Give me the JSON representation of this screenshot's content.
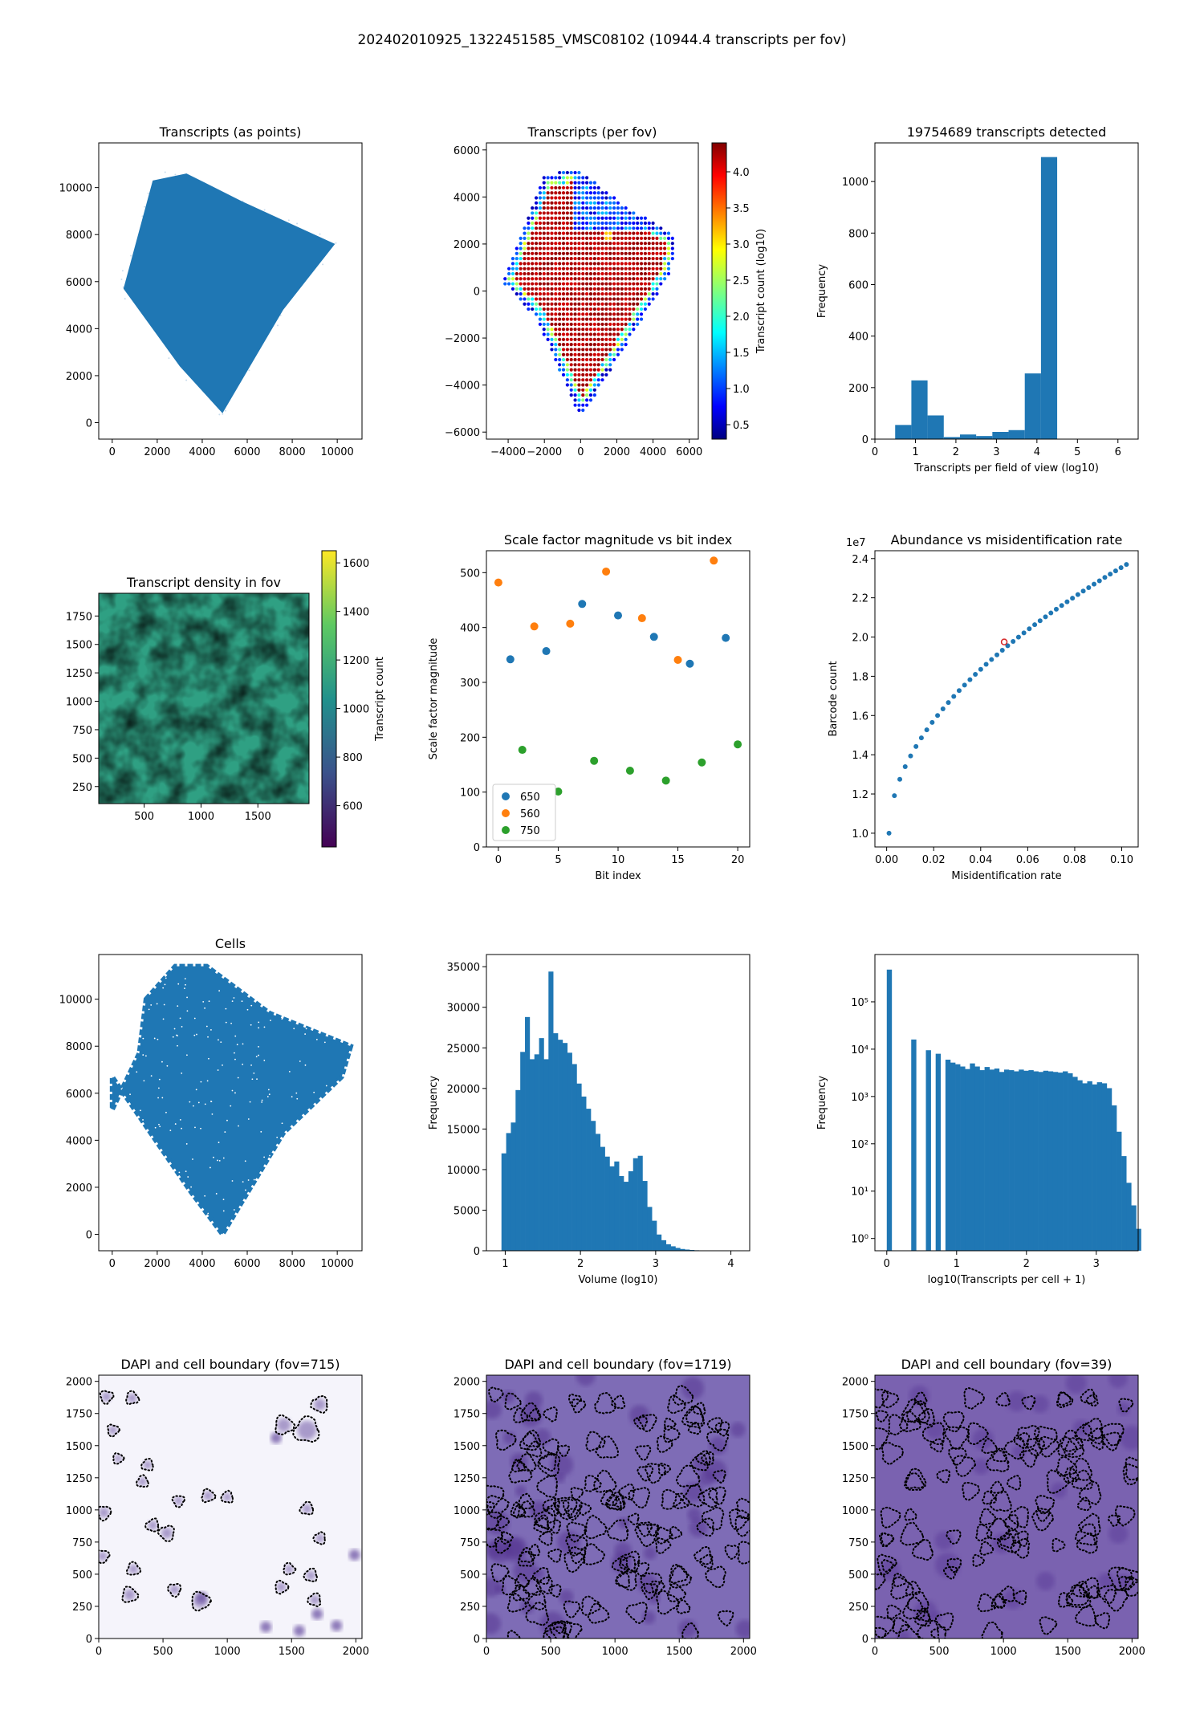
{
  "figure": {
    "suptitle": "202402010925_1322451585_VMSC08102 (10944.4 transcripts per fov)"
  },
  "colors": {
    "blue": "#1f77b4",
    "orange": "#ff7f0e",
    "green": "#2ca02c",
    "red": "#d62728"
  },
  "chart_data": [
    {
      "id": "points",
      "type": "scatter",
      "title": "Transcripts (as points)",
      "xlabel": "",
      "ylabel": "",
      "xlim": [
        -600,
        11100
      ],
      "ylim": [
        -700,
        11900
      ],
      "xticks": [
        0,
        2000,
        4000,
        6000,
        8000,
        10000
      ],
      "yticks": [
        0,
        2000,
        4000,
        6000,
        8000,
        10000
      ],
      "polygon": [
        [
          1800,
          10300
        ],
        [
          3300,
          10600
        ],
        [
          5800,
          9400
        ],
        [
          9900,
          7600
        ],
        [
          7600,
          4800
        ],
        [
          4900,
          400
        ],
        [
          3000,
          2400
        ],
        [
          500,
          5700
        ]
      ],
      "point_color": "#1f77b4"
    },
    {
      "id": "fovgrid",
      "type": "scatter",
      "title": "Transcripts (per fov)",
      "xlabel": "",
      "ylabel": "",
      "xlim": [
        -5200,
        6500
      ],
      "ylim": [
        -6300,
        6300
      ],
      "xticks": [
        -4000,
        -2000,
        0,
        2000,
        4000,
        6000
      ],
      "xtick_labels": [
        "−4000",
        "−2000",
        "0",
        "2000",
        "4000",
        "6000"
      ],
      "yticks": [
        -6000,
        -4000,
        -2000,
        0,
        2000,
        4000,
        6000
      ],
      "ytick_labels": [
        "−6000",
        "−4000",
        "−2000",
        "0",
        "2000",
        "4000",
        "6000"
      ],
      "colorbar": {
        "label": "Transcript count (log10)",
        "range": [
          0.3,
          4.4
        ],
        "ticks": [
          0.5,
          1.0,
          1.5,
          2.0,
          2.5,
          3.0,
          3.5,
          4.0
        ]
      },
      "region": [
        [
          -2000,
          4900
        ],
        [
          -200,
          5200
        ],
        [
          2300,
          3700
        ],
        [
          5300,
          2300
        ],
        [
          5000,
          800
        ],
        [
          0,
          -5400
        ],
        [
          -2400,
          -1200
        ],
        [
          -4300,
          400
        ]
      ]
    },
    {
      "id": "fovhist",
      "type": "bar",
      "title": "19754689 transcripts detected",
      "xlabel": "Transcripts per field of view (log10)",
      "ylabel": "Frequency",
      "xlim": [
        0,
        6.5
      ],
      "ylim": [
        0,
        1150
      ],
      "xticks": [
        0,
        1,
        2,
        3,
        4,
        5,
        6
      ],
      "yticks": [
        0,
        200,
        400,
        600,
        800,
        1000
      ],
      "bin_edges": [
        0.5,
        0.9,
        1.3,
        1.7,
        2.1,
        2.5,
        2.9,
        3.3,
        3.7,
        4.1,
        4.5
      ],
      "values": [
        55,
        228,
        92,
        8,
        18,
        12,
        28,
        35,
        255,
        1095
      ]
    },
    {
      "id": "density",
      "type": "heatmap",
      "title": "Transcript density in fov",
      "xlabel": "",
      "ylabel": "",
      "xlim": [
        100,
        1950
      ],
      "ylim": [
        100,
        1950
      ],
      "xticks": [
        500,
        1000,
        1500
      ],
      "yticks": [
        250,
        500,
        750,
        1000,
        1250,
        1500,
        1750
      ],
      "colorbar": {
        "label": "Transcript count",
        "range": [
          430,
          1650
        ],
        "ticks": [
          600,
          800,
          1000,
          1200,
          1400,
          1600
        ]
      }
    },
    {
      "id": "scale",
      "type": "scatter",
      "title": "Scale factor magnitude vs bit index",
      "xlabel": "Bit index",
      "ylabel": "Scale factor magnitude",
      "xlim": [
        -1,
        21
      ],
      "ylim": [
        0,
        540
      ],
      "xticks": [
        0,
        5,
        10,
        15,
        20
      ],
      "yticks": [
        0,
        100,
        200,
        300,
        400,
        500
      ],
      "legend_position": "lower left",
      "series": [
        {
          "name": "650",
          "color": "#1f77b4",
          "x": [
            1,
            4,
            7,
            10,
            13,
            16,
            19
          ],
          "y": [
            342,
            357,
            443,
            422,
            383,
            334,
            381
          ]
        },
        {
          "name": "560",
          "color": "#ff7f0e",
          "x": [
            0,
            3,
            6,
            9,
            12,
            15,
            18
          ],
          "y": [
            482,
            402,
            407,
            502,
            417,
            341,
            522
          ]
        },
        {
          "name": "750",
          "color": "#2ca02c",
          "x": [
            2,
            5,
            8,
            11,
            14,
            17,
            20
          ],
          "y": [
            177,
            101,
            157,
            139,
            121,
            154,
            187
          ]
        }
      ]
    },
    {
      "id": "abund",
      "type": "scatter",
      "title": "Abundance vs misidentification rate",
      "xlabel": "Misidentification rate",
      "ylabel": "Barcode count",
      "offset_label": "1e7",
      "xlim": [
        -0.005,
        0.107
      ],
      "ylim": [
        0.93,
        2.44
      ],
      "xticks": [
        0,
        0.02,
        0.04,
        0.06,
        0.08,
        0.1
      ],
      "xtick_labels": [
        "0.00",
        "0.02",
        "0.04",
        "0.06",
        "0.08",
        "0.10"
      ],
      "yticks": [
        1.0,
        1.2,
        1.4,
        1.6,
        1.8,
        2.0,
        2.2,
        2.4
      ],
      "ytick_labels": [
        "1.0",
        "1.2",
        "1.4",
        "1.6",
        "1.8",
        "2.0",
        "2.2",
        "2.4"
      ],
      "curve": {
        "x_start": 0.001,
        "x_end": 0.102,
        "points": 45,
        "y_at_start": 1.0,
        "y_at_end": 2.37
      },
      "highlight": {
        "x": 0.05,
        "y": 1.975,
        "color": "#d62728"
      }
    },
    {
      "id": "cells",
      "type": "scatter",
      "title": "Cells",
      "xlabel": "",
      "ylabel": "",
      "xlim": [
        -600,
        11100
      ],
      "ylim": [
        -700,
        11900
      ],
      "xticks": [
        0,
        2000,
        4000,
        6000,
        8000,
        10000
      ],
      "yticks": [
        0,
        2000,
        4000,
        6000,
        8000,
        10000
      ],
      "polygon": [
        [
          1500,
          10000
        ],
        [
          2800,
          11400
        ],
        [
          4200,
          11400
        ],
        [
          7000,
          9400
        ],
        [
          10600,
          8000
        ],
        [
          10200,
          6700
        ],
        [
          7600,
          4300
        ],
        [
          4900,
          0
        ],
        [
          3500,
          1800
        ],
        [
          0,
          6700
        ],
        [
          0,
          5300
        ],
        [
          1200,
          7700
        ]
      ]
    },
    {
      "id": "volume",
      "type": "bar",
      "title": "",
      "xlabel": "Volume (log10)",
      "ylabel": "Frequency",
      "xlim": [
        0.75,
        4.25
      ],
      "ylim": [
        0,
        36500
      ],
      "xticks": [
        1,
        2,
        3,
        4
      ],
      "yticks": [
        0,
        5000,
        10000,
        15000,
        20000,
        25000,
        30000,
        35000
      ],
      "bin_start": 0.95,
      "bin_width": 0.0625,
      "values": [
        12000,
        14500,
        15800,
        19800,
        24500,
        28800,
        23600,
        24200,
        26200,
        23600,
        34400,
        26800,
        26000,
        25600,
        24400,
        23000,
        20600,
        19000,
        17500,
        16000,
        14400,
        12800,
        11600,
        10400,
        11000,
        9200,
        8500,
        9800,
        11400,
        11700,
        8600,
        5400,
        3700,
        2000,
        1300,
        800,
        550,
        350,
        220,
        150,
        100,
        60,
        40,
        20
      ]
    },
    {
      "id": "percell",
      "type": "bar",
      "title": "",
      "xlabel": "log10(Transcripts per cell + 1)",
      "ylabel": "Frequency",
      "yscale": "log",
      "xlim": [
        -0.17,
        3.6
      ],
      "ylim": [
        0.55,
        1000000
      ],
      "xticks": [
        0,
        1,
        2,
        3
      ],
      "yticks": [
        1,
        10,
        100,
        1000,
        10000,
        100000
      ],
      "ytick_labels": [
        "10⁰",
        "10¹",
        "10²",
        "10³",
        "10⁴",
        "10⁵"
      ],
      "bin_width": 0.07,
      "values": [
        480000,
        0,
        0,
        0,
        0,
        16000,
        0,
        0,
        9500,
        0,
        8000,
        0,
        6000,
        5200,
        4800,
        4300,
        3800,
        5000,
        4300,
        3600,
        4200,
        3700,
        3900,
        3300,
        3700,
        3600,
        3400,
        3700,
        3500,
        3600,
        3400,
        3300,
        3500,
        3400,
        3300,
        3200,
        3400,
        3100,
        2600,
        2200,
        1900,
        2100,
        1800,
        2000,
        1900,
        1500,
        650,
        180,
        55,
        15,
        5,
        1.6
      ]
    },
    {
      "id": "dapi715",
      "type": "heatmap",
      "title": "DAPI and cell boundary (fov=715)",
      "xlim": [
        0,
        2048
      ],
      "ylim": [
        0,
        2048
      ],
      "xticks": [
        0,
        500,
        1000,
        1500,
        2000
      ],
      "yticks": [
        0,
        250,
        500,
        750,
        1000,
        1250,
        1500,
        1750,
        2000
      ],
      "background": "#f5f4fb",
      "nucleus_color": "#6a51a3",
      "boundaries": [
        [
          60,
          1880,
          55
        ],
        [
          260,
          1870,
          55
        ],
        [
          110,
          1620,
          50
        ],
        [
          150,
          1400,
          45
        ],
        [
          380,
          1350,
          50
        ],
        [
          340,
          1220,
          50
        ],
        [
          620,
          1070,
          50
        ],
        [
          850,
          1110,
          55
        ],
        [
          1000,
          1100,
          50
        ],
        [
          420,
          880,
          55
        ],
        [
          530,
          820,
          65
        ],
        [
          270,
          540,
          55
        ],
        [
          240,
          340,
          65
        ],
        [
          590,
          380,
          55
        ],
        [
          790,
          290,
          80
        ],
        [
          1420,
          400,
          55
        ],
        [
          1480,
          540,
          50
        ],
        [
          1650,
          490,
          55
        ],
        [
          1680,
          300,
          55
        ],
        [
          1620,
          1010,
          55
        ],
        [
          1720,
          780,
          50
        ],
        [
          1440,
          1660,
          80
        ],
        [
          1620,
          1620,
          110
        ],
        [
          1720,
          1820,
          70
        ],
        [
          40,
          980,
          60
        ],
        [
          30,
          640,
          55
        ]
      ]
    },
    {
      "id": "dapi1719",
      "type": "heatmap",
      "title": "DAPI and cell boundary (fov=1719)",
      "xlim": [
        0,
        2048
      ],
      "ylim": [
        0,
        2048
      ],
      "xticks": [
        0,
        500,
        1000,
        1500,
        2000
      ],
      "yticks": [
        0,
        250,
        500,
        750,
        1000,
        1250,
        1500,
        1750,
        2000
      ],
      "background": "#7e6cb6",
      "nucleus_color": "#53318f"
    },
    {
      "id": "dapi39",
      "type": "heatmap",
      "title": "DAPI and cell boundary (fov=39)",
      "xlim": [
        0,
        2048
      ],
      "ylim": [
        0,
        2048
      ],
      "xticks": [
        0,
        500,
        1000,
        1500,
        2000
      ],
      "yticks": [
        0,
        250,
        500,
        750,
        1000,
        1250,
        1500,
        1750,
        2000
      ],
      "background": "#7a62b0",
      "nucleus_color": "#5a3a98"
    }
  ]
}
